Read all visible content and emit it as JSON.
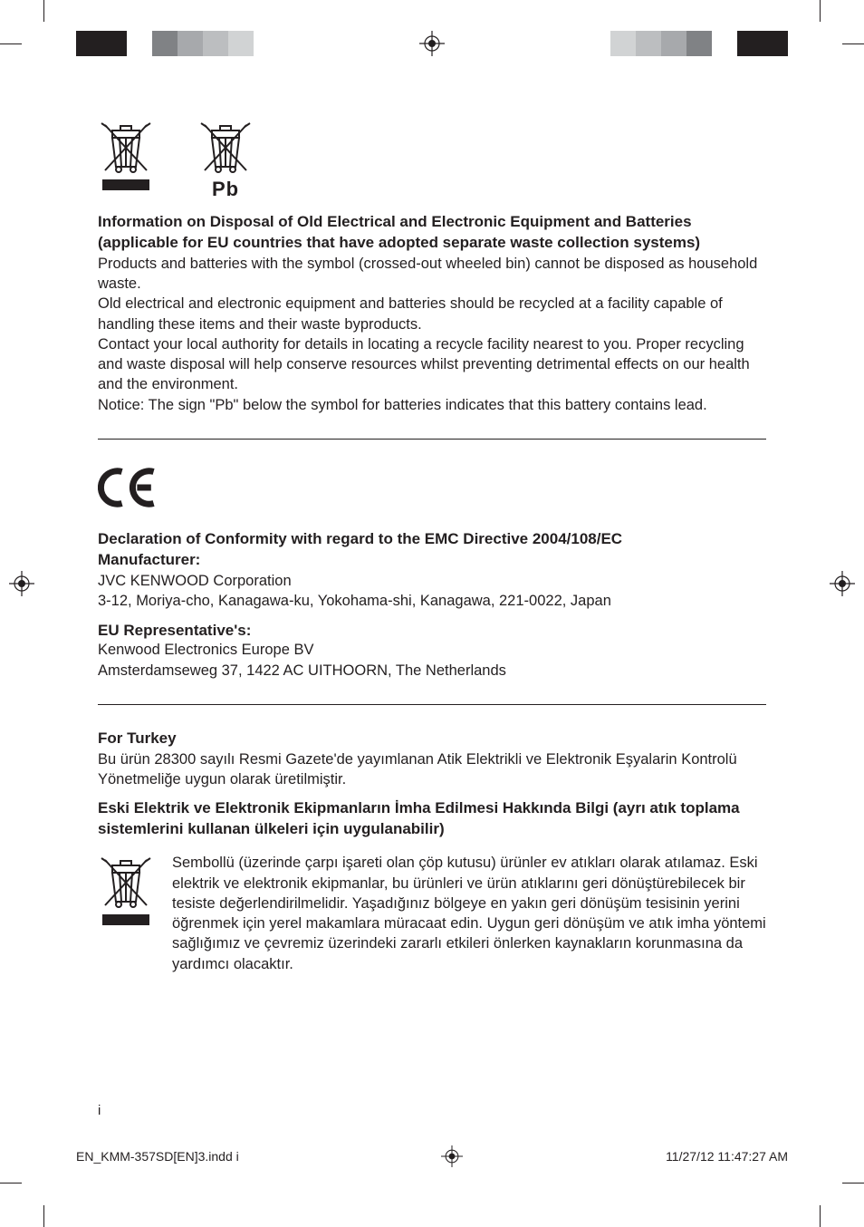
{
  "colors": {
    "text": "#231f20",
    "background": "#ffffff",
    "swatches_left": [
      "#231f20",
      "#231f20",
      "#ffffff",
      "#808285",
      "#a7a9ac",
      "#bcbec0",
      "#d1d3d4"
    ],
    "swatches_right": [
      "#231f20",
      "#231f20",
      "#ffffff",
      "#808285",
      "#a7a9ac",
      "#bcbec0",
      "#d1d3d4"
    ]
  },
  "typography": {
    "body_pt": 12,
    "heading_pt": 12,
    "heading_weight": 700,
    "family": "Myriad Pro / sans-serif"
  },
  "icons": {
    "pb_label": "Pb"
  },
  "section1": {
    "title": "Information on Disposal of Old Electrical and Electronic Equipment and Batteries (applicable for EU countries that have adopted separate waste collection systems)",
    "p1": "Products and batteries with the symbol (crossed-out wheeled bin) cannot be disposed as household waste.",
    "p2": "Old electrical and electronic equipment and batteries should be recycled at a facility capable of handling these items and their waste byproducts.",
    "p3": "Contact your local authority for details in locating a recycle facility nearest to you. Proper recycling and waste disposal will help conserve resources whilst preventing detrimental effects on our health and the environment.",
    "p4": "Notice:  The sign \"Pb\" below the symbol for batteries indicates that this battery contains lead."
  },
  "section2": {
    "title": "Declaration of Conformity with regard to the EMC Directive 2004/108/EC",
    "manufacturer_label": "Manufacturer:",
    "manufacturer_name": "JVC KENWOOD Corporation",
    "manufacturer_addr": "3-12, Moriya-cho, Kanagawa-ku, Yokohama-shi, Kanagawa, 221-0022, Japan",
    "eu_rep_label": "EU Representative's:",
    "eu_rep_name": "Kenwood Electronics Europe BV",
    "eu_rep_addr": "Amsterdamseweg 37, 1422 AC UITHOORN, The Netherlands"
  },
  "section3": {
    "for_turkey": "For Turkey",
    "turkey_p1": "Bu ürün 28300 sayılı Resmi Gazete'de yayımlanan Atik Elektrikli ve Elektronik Eşyalarin Kontrolü Yönetmeliğe uygun olarak üretilmiştir.",
    "turkey_heading": "Eski Elektrik ve Elektronik Ekipmanların İmha Edilmesi Hakkında Bilgi (ayrı atık toplama sistemlerini kullanan ülkeleri için uygulanabilir)",
    "turkey_body": "Sembollü (üzerinde çarpı işareti olan çöp kutusu) ürünler ev atıkları olarak atılamaz. Eski elektrik ve elektronik ekipmanlar, bu ürünleri ve ürün atıklarını geri dönüştürebilecek bir tesiste değerlendirilmelidir. Yaşadığınız bölgeye en yakın geri dönüşüm tesisinin yerini öğrenmek için yerel makamlara müracaat edin. Uygun geri dönüşüm ve atık imha yöntemi sağlığımız ve çevremiz üzerindeki zararlı etkileri önlerken kaynakların korunmasına da yardımcı olacaktır."
  },
  "page_number": "i",
  "footer": {
    "file": "EN_KMM-357SD[EN]3.indd   i",
    "timestamp": "11/27/12   11:47:27 AM"
  }
}
